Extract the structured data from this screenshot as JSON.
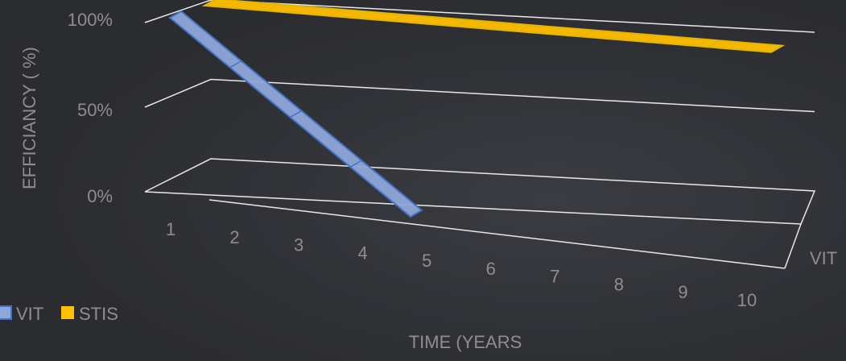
{
  "chart_data": {
    "type": "line",
    "style": "3d",
    "categories": [
      "1",
      "2",
      "3",
      "4",
      "5",
      "6",
      "7",
      "8",
      "9",
      "10"
    ],
    "series": [
      {
        "name": "VIT",
        "values": [
          100,
          75,
          50,
          25,
          0,
          null,
          null,
          null,
          null,
          null
        ],
        "color": "#4472c4",
        "fill": "#8ea6d9"
      },
      {
        "name": "STIS",
        "values": [
          100,
          99,
          98,
          97,
          96,
          95,
          94,
          93,
          92,
          91
        ],
        "color": "#e7b400",
        "fill": "#ffc000"
      }
    ],
    "ylim": [
      0,
      100
    ],
    "ytick_labels": [
      "0%",
      "50%",
      "100%"
    ],
    "ylabel": "EFFICIANCY ( %)",
    "xlabel": "TIME (YEARS",
    "depth_axis_label": "VIT",
    "legend_position": "bottom-left",
    "grid": true,
    "colors": {
      "background": "#2b2c30",
      "text": "#8e8e8e",
      "gridline": "#e8e8e8"
    }
  }
}
